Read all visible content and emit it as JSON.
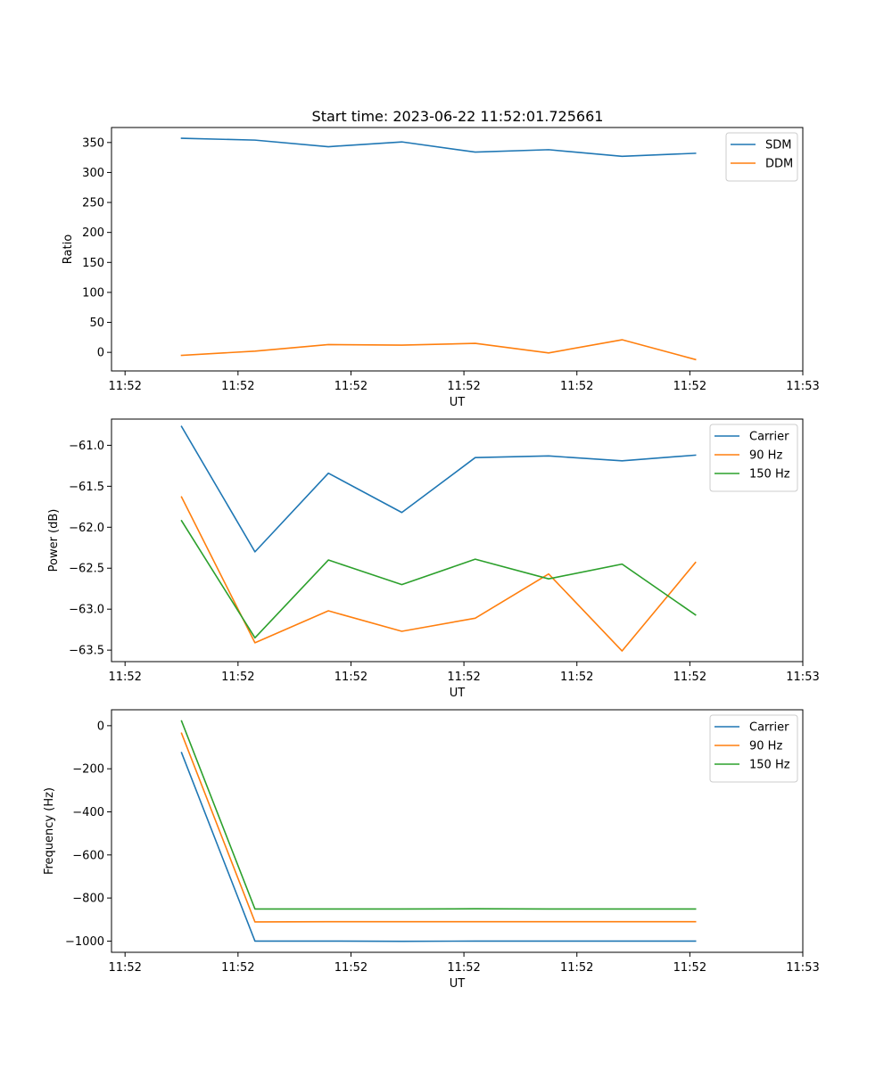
{
  "title": "Start time: 2023-06-22 11:52:01.725661",
  "chart_data": [
    {
      "type": "line",
      "xlabel": "UT",
      "ylabel": "Ratio",
      "x_ticks": [
        "11:52",
        "11:52",
        "11:52",
        "11:52",
        "11:52",
        "11:52",
        "11:53"
      ],
      "x_tick_values": [
        0,
        1,
        2,
        3,
        4,
        5,
        6
      ],
      "xlim": [
        -0.12,
        6.0
      ],
      "x": [
        0.5,
        1.15,
        1.8,
        2.45,
        3.1,
        3.75,
        4.4,
        5.05
      ],
      "y_ticks": [
        0,
        50,
        100,
        150,
        200,
        250,
        300,
        350
      ],
      "ylim": [
        -31,
        375
      ],
      "legend": "top-right",
      "series": [
        {
          "name": "SDM",
          "color": "#1f77b4",
          "values": [
            357,
            354,
            343,
            351,
            334,
            338,
            327,
            332
          ]
        },
        {
          "name": "DDM",
          "color": "#ff7f0e",
          "values": [
            -5,
            2,
            13,
            12,
            15,
            -1,
            21,
            -12
          ]
        }
      ]
    },
    {
      "type": "line",
      "xlabel": "UT",
      "ylabel": "Power (dB)",
      "x_ticks": [
        "11:52",
        "11:52",
        "11:52",
        "11:52",
        "11:52",
        "11:52",
        "11:53"
      ],
      "x_tick_values": [
        0,
        1,
        2,
        3,
        4,
        5,
        6
      ],
      "xlim": [
        -0.12,
        6.0
      ],
      "x": [
        0.5,
        1.15,
        1.8,
        2.45,
        3.1,
        3.75,
        4.4,
        5.05
      ],
      "y_ticks": [
        -63.5,
        -63.0,
        -62.5,
        -62.0,
        -61.5,
        -61.0
      ],
      "y_tick_labels": [
        "−63.5",
        "−63.0",
        "−62.5",
        "−62.0",
        "−61.5",
        "−61.0"
      ],
      "ylim": [
        -63.64,
        -60.68
      ],
      "legend": "top-right",
      "series": [
        {
          "name": "Carrier",
          "color": "#1f77b4",
          "values": [
            -60.77,
            -62.3,
            -61.34,
            -61.82,
            -61.15,
            -61.13,
            -61.19,
            -61.12
          ]
        },
        {
          "name": "90 Hz",
          "color": "#ff7f0e",
          "values": [
            -61.63,
            -63.41,
            -63.02,
            -63.27,
            -63.11,
            -62.57,
            -63.51,
            -62.43
          ]
        },
        {
          "name": "150 Hz",
          "color": "#2ca02c",
          "values": [
            -61.92,
            -63.35,
            -62.4,
            -62.7,
            -62.39,
            -62.63,
            -62.45,
            -63.07
          ]
        }
      ]
    },
    {
      "type": "line",
      "xlabel": "UT",
      "ylabel": "Frequency (Hz)",
      "x_ticks": [
        "11:52",
        "11:52",
        "11:52",
        "11:52",
        "11:52",
        "11:52",
        "11:53"
      ],
      "x_tick_values": [
        0,
        1,
        2,
        3,
        4,
        5,
        6
      ],
      "xlim": [
        -0.12,
        6.0
      ],
      "x": [
        0.5,
        1.15,
        1.8,
        2.45,
        3.1,
        3.75,
        4.4,
        5.05
      ],
      "y_ticks": [
        -1000,
        -800,
        -600,
        -400,
        -200,
        0
      ],
      "y_tick_labels": [
        "−1000",
        "−800",
        "−600",
        "−400",
        "−200",
        "0"
      ],
      "ylim": [
        -1052,
        74
      ],
      "legend": "top-right",
      "series": [
        {
          "name": "Carrier",
          "color": "#1f77b4",
          "values": [
            -125,
            -1000,
            -1000,
            -1001,
            -1000,
            -1000,
            -1000,
            -1000
          ]
        },
        {
          "name": "90 Hz",
          "color": "#ff7f0e",
          "values": [
            -35,
            -911,
            -910,
            -910,
            -910,
            -910,
            -910,
            -910
          ]
        },
        {
          "name": "150 Hz",
          "color": "#2ca02c",
          "values": [
            22,
            -851,
            -851,
            -851,
            -850,
            -851,
            -851,
            -851
          ]
        }
      ]
    }
  ]
}
